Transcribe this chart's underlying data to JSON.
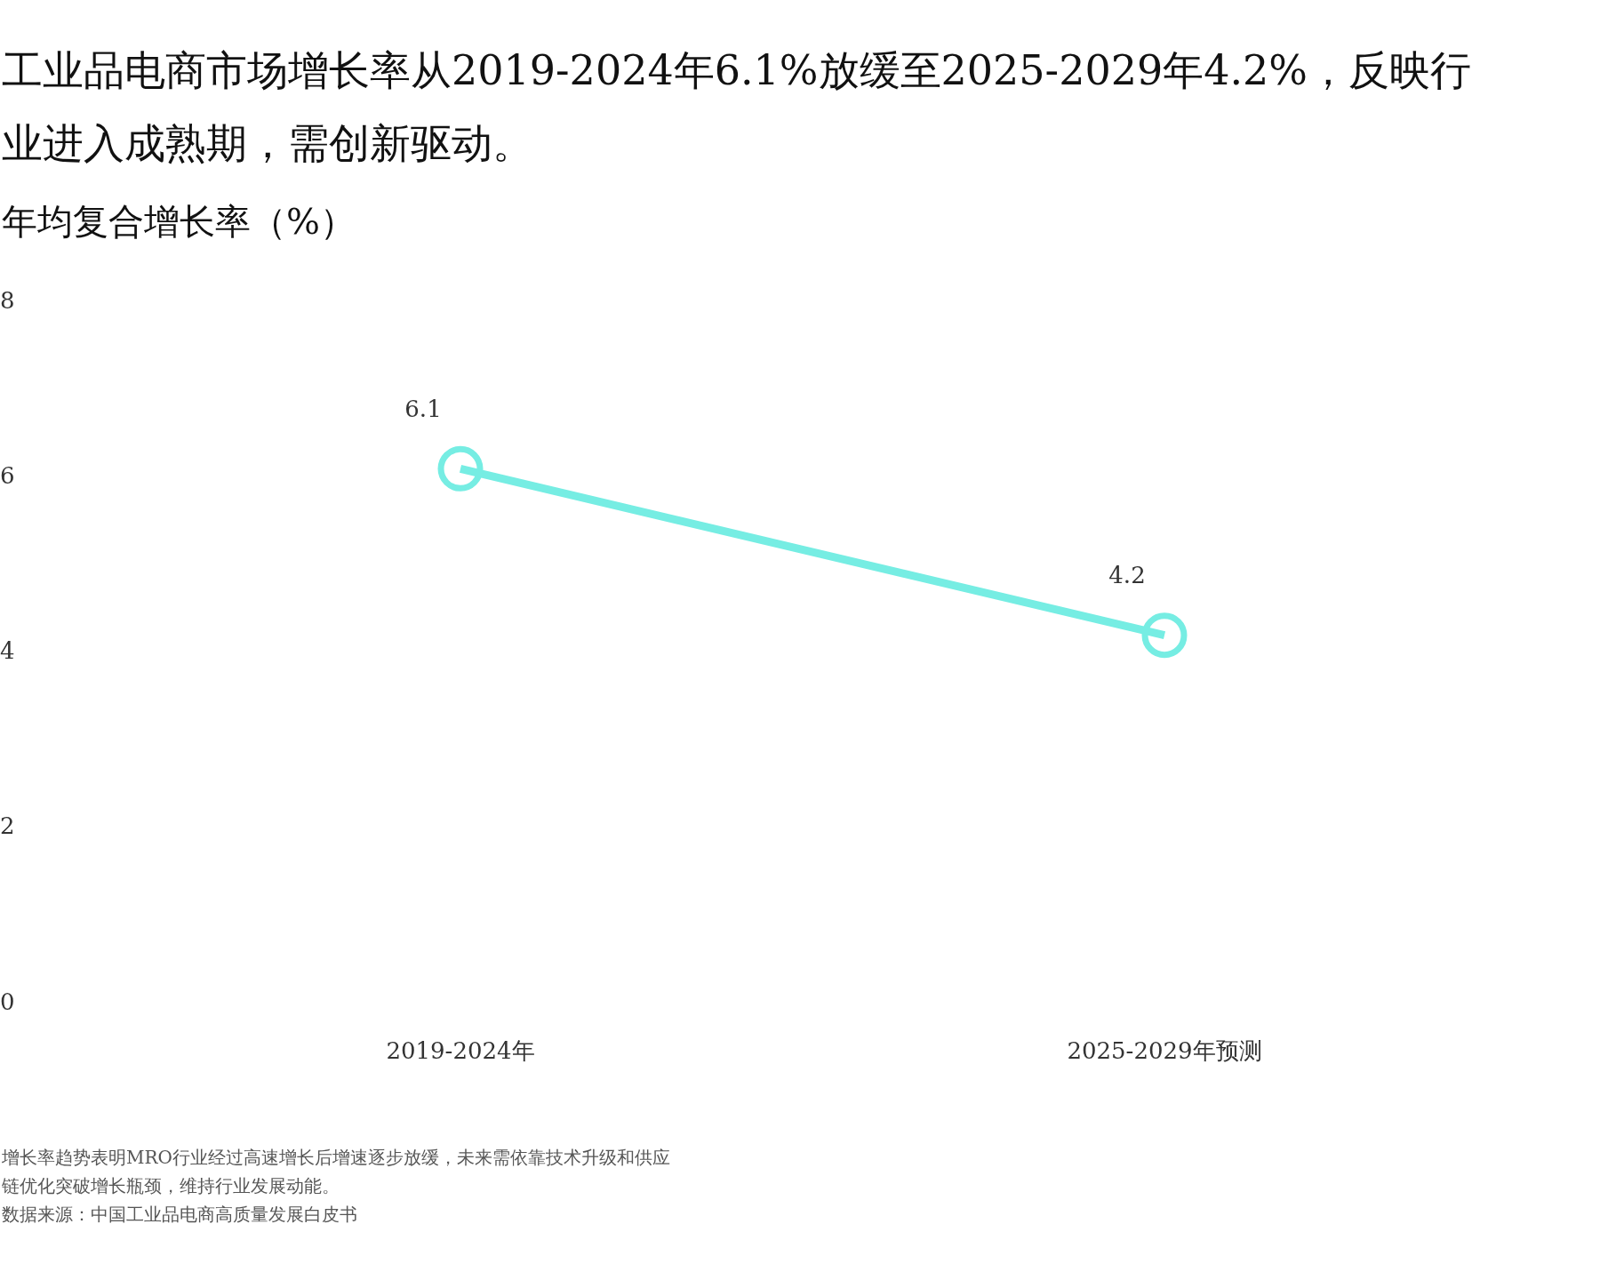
{
  "chart_data": {
    "type": "line",
    "title": "工业品电商市场增长率从2019-2024年6.1%放缓至2025-2029年4.2%，反映行业进入成熟期，需创新驱动。",
    "ylabel": "年均复合增长率（%）",
    "categories": [
      "2019-2024年",
      "2025-2029年预测"
    ],
    "series": [
      {
        "color": "#76ede3",
        "values": [
          6.1,
          4.2
        ]
      }
    ],
    "ylim": [
      0,
      8
    ],
    "yticks": [
      0,
      2,
      4,
      6,
      8
    ],
    "grid": false,
    "legend": false,
    "marker": "circle",
    "line_style": "solid",
    "data_labels": true,
    "annotations": [
      "增长率趋势表明MRO行业经过高速增长后增速逐步放缓，未来需依靠技术升级和供应链优化突破增长瓶颈，维持行业发展动能。",
      "数据来源：中国工业品电商高质量发展白皮书"
    ]
  }
}
